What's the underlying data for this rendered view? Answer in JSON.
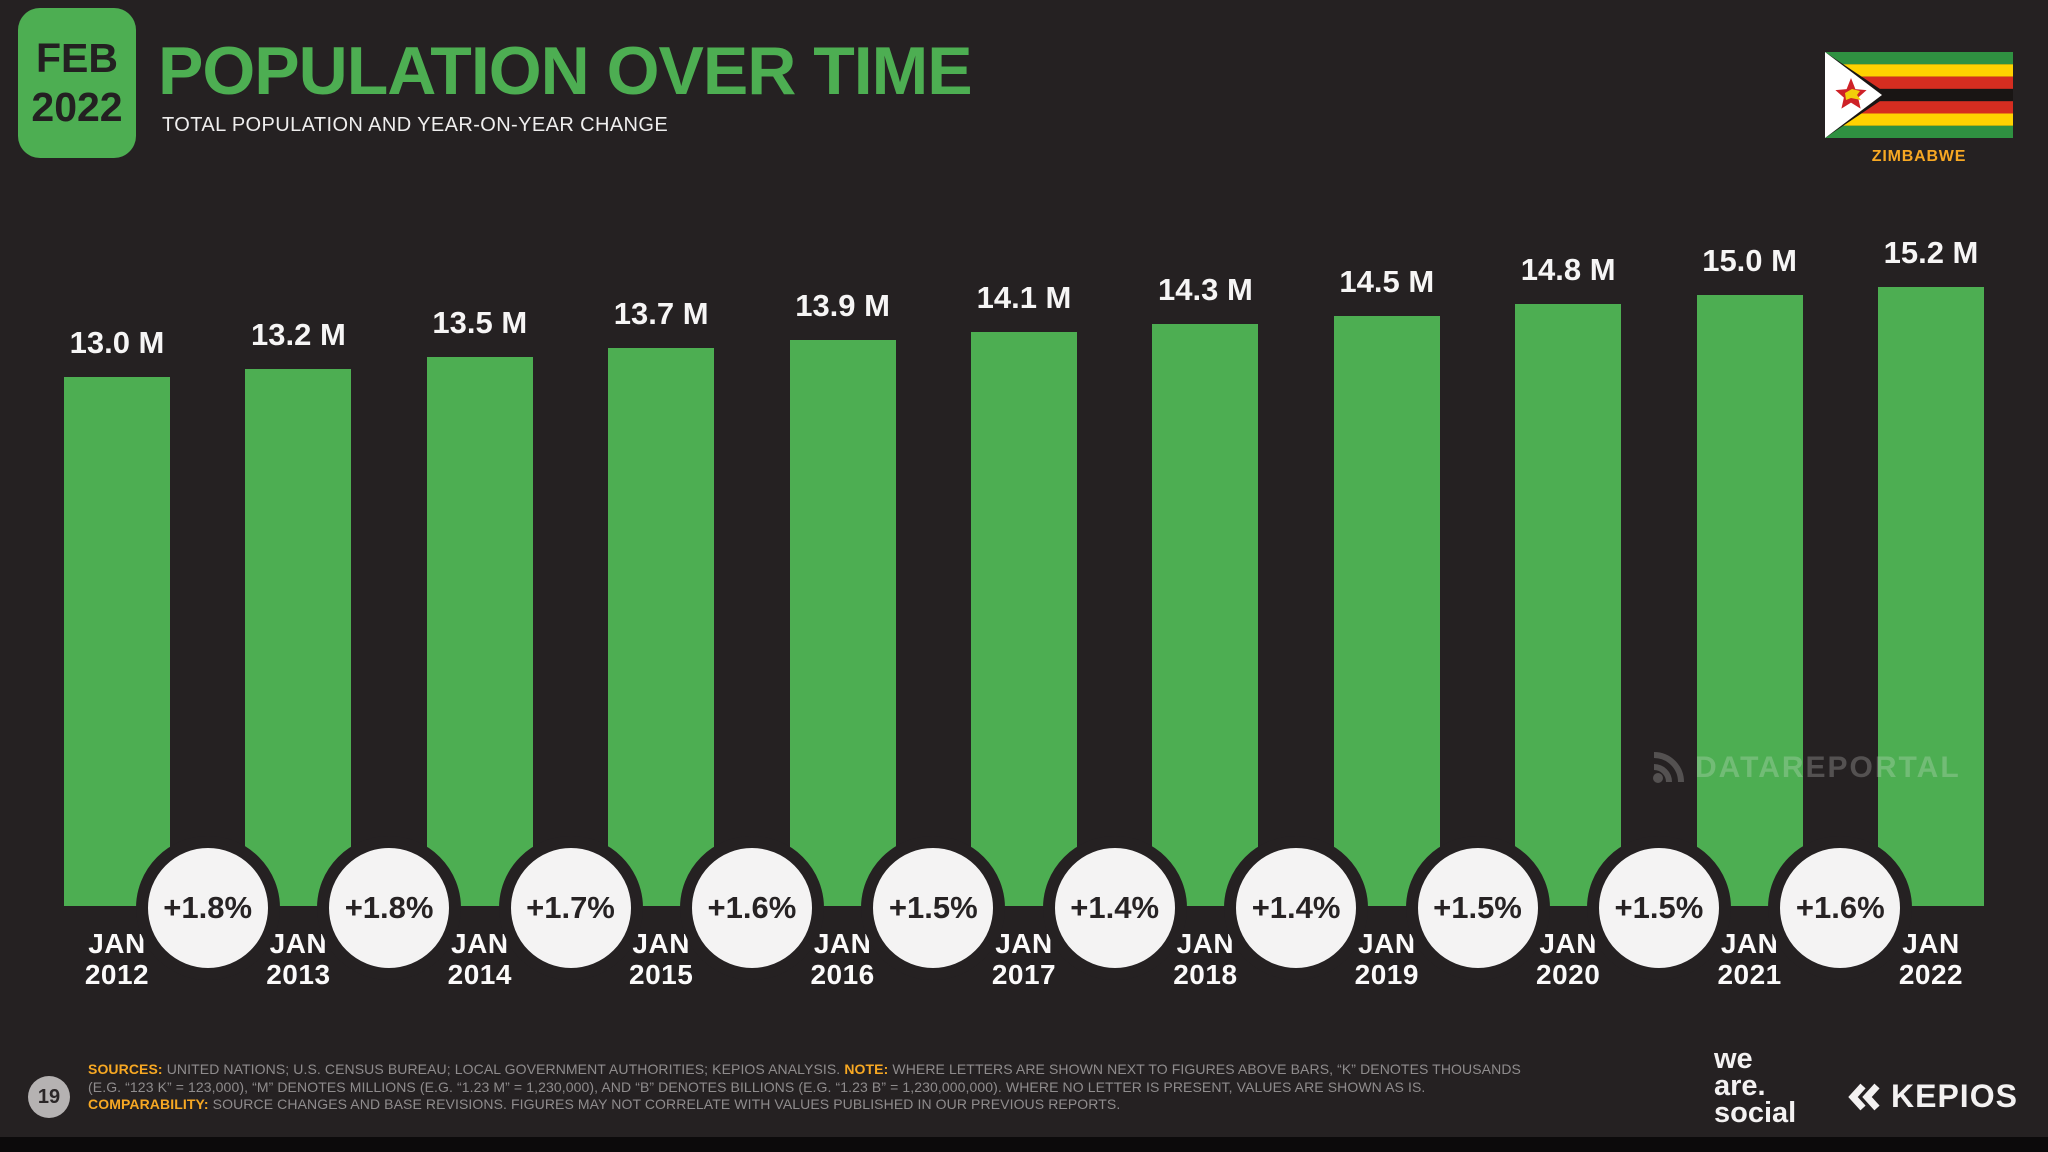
{
  "slide": {
    "bg": "#252122",
    "accent_green": "#4dae52"
  },
  "header": {
    "badge": {
      "line1": "FEB",
      "line2": "2022"
    },
    "title": "POPULATION OVER TIME",
    "subtitle": "TOTAL POPULATION AND YEAR-ON-YEAR CHANGE",
    "country": "ZIMBABWE"
  },
  "chart_data": {
    "type": "bar",
    "title": "POPULATION OVER TIME",
    "subtitle": "TOTAL POPULATION AND YEAR-ON-YEAR CHANGE",
    "unit": "millions of people",
    "categories": [
      "JAN 2012",
      "JAN 2013",
      "JAN 2014",
      "JAN 2015",
      "JAN 2016",
      "JAN 2017",
      "JAN 2018",
      "JAN 2019",
      "JAN 2020",
      "JAN 2021",
      "JAN 2022"
    ],
    "values": [
      13.0,
      13.2,
      13.5,
      13.7,
      13.9,
      14.1,
      14.3,
      14.5,
      14.8,
      15.0,
      15.2
    ],
    "bar_labels": [
      "13.0 M",
      "13.2 M",
      "13.5 M",
      "13.7 M",
      "13.9 M",
      "14.1 M",
      "14.3 M",
      "14.5 M",
      "14.8 M",
      "15.0 M",
      "15.2 M"
    ],
    "yoy_change": {
      "labels": [
        "+1.8%",
        "+1.8%",
        "+1.7%",
        "+1.6%",
        "+1.5%",
        "+1.4%",
        "+1.4%",
        "+1.5%",
        "+1.5%",
        "+1.6%"
      ],
      "values": [
        1.8,
        1.8,
        1.7,
        1.6,
        1.5,
        1.4,
        1.4,
        1.5,
        1.5,
        1.6
      ]
    },
    "ylim": [
      0,
      16
    ],
    "bar_color": "#4dae52",
    "grid": false,
    "legend": false
  },
  "watermark": {
    "text": "DATAREPORTAL"
  },
  "footer": {
    "page_number": "19",
    "sources_label": "SOURCES:",
    "sources_body": "UNITED NATIONS; U.S. CENSUS BUREAU; LOCAL GOVERNMENT AUTHORITIES; KEPIOS ANALYSIS.",
    "note_label": "NOTE:",
    "note_line1": "WHERE LETTERS ARE SHOWN NEXT TO FIGURES ABOVE BARS, “K” DENOTES THOUSANDS",
    "note_line2": "(E.G. “123 K” = 123,000), “M” DENOTES MILLIONS (E.G. “1.23 M” = 1,230,000), AND “B” DENOTES BILLIONS (E.G. “1.23 B” = 1,230,000,000). WHERE NO LETTER IS PRESENT, VALUES ARE SHOWN AS IS.",
    "comparability_label": "COMPARABILITY:",
    "comparability_body": "SOURCE CHANGES AND BASE REVISIONS. FIGURES MAY NOT CORRELATE WITH VALUES PUBLISHED IN OUR PREVIOUS REPORTS.",
    "logo_we_are_social": [
      "we",
      "are.",
      "social"
    ],
    "logo_kepios": "KEPIOS"
  }
}
